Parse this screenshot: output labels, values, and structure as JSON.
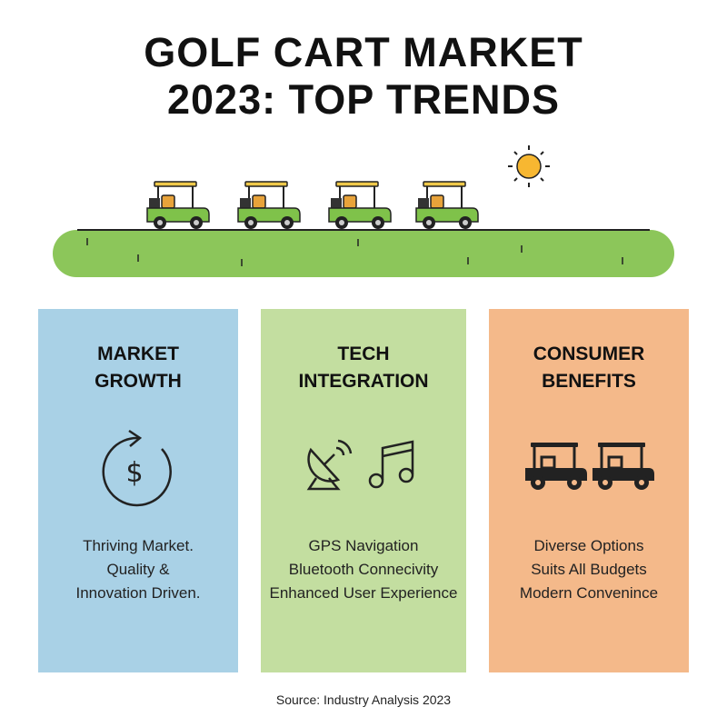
{
  "header": {
    "title_lines": [
      "GOLF CART MARKET",
      "2023: TOP TRENDS"
    ]
  },
  "panels": [
    {
      "title_lines": [
        "MARKET",
        "GROWTH"
      ],
      "lines": [
        "Thriving Market.",
        "Quality &",
        "Innovation Driven."
      ]
    },
    {
      "title_lines": [
        "TECH",
        "INTEGRATION"
      ],
      "lines": [
        "GPS Navigation",
        "Bluetooth Connecivity",
        "Enhanced User Experience"
      ]
    },
    {
      "title_lines": [
        "CONSUMER",
        "BENEFITS"
      ],
      "lines": [
        "Diverse Options",
        "Suits All Budgets",
        "Modern Convenince"
      ]
    }
  ],
  "footer": {
    "source": "Source: Industry Analysis 2023"
  }
}
